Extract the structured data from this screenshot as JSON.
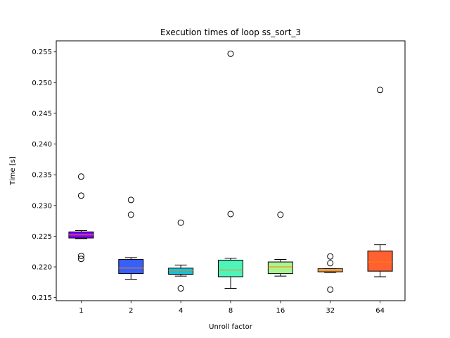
{
  "chart_data": {
    "type": "box",
    "title": "Execution times of loop ss_sort_3",
    "xlabel": "Unroll factor",
    "ylabel": "Time [s]",
    "ylim": [
      0.2145,
      0.2568
    ],
    "yticks": [
      "0.215",
      "0.220",
      "0.225",
      "0.230",
      "0.235",
      "0.240",
      "0.245",
      "0.250",
      "0.255"
    ],
    "grid": false,
    "categories": [
      "1",
      "2",
      "4",
      "8",
      "16",
      "32",
      "64"
    ],
    "boxes": [
      {
        "category": "1",
        "whislo": 0.2246,
        "q1": 0.2247,
        "med": 0.2252,
        "q3": 0.2257,
        "whishi": 0.2259,
        "fliers": [
          0.2347,
          0.2316,
          0.2218,
          0.2213
        ],
        "color": "#8000ff"
      },
      {
        "category": "2",
        "whislo": 0.218,
        "q1": 0.2189,
        "med": 0.2198,
        "q3": 0.2212,
        "whishi": 0.2215,
        "fliers": [
          0.2309,
          0.2285
        ],
        "color": "#3660f9"
      },
      {
        "category": "4",
        "whislo": 0.2185,
        "q1": 0.2188,
        "med": 0.2194,
        "q3": 0.2198,
        "whishi": 0.2203,
        "fliers": [
          0.2272,
          0.2165
        ],
        "color": "#14c0db"
      },
      {
        "category": "8",
        "whislo": 0.2165,
        "q1": 0.2184,
        "med": 0.2195,
        "q3": 0.2211,
        "whishi": 0.2214,
        "fliers": [
          0.2547,
          0.2286
        ],
        "color": "#4ef4b9"
      },
      {
        "category": "16",
        "whislo": 0.2185,
        "q1": 0.2189,
        "med": 0.22,
        "q3": 0.2208,
        "whishi": 0.2212,
        "fliers": [
          0.2285
        ],
        "color": "#acf48f"
      },
      {
        "category": "32",
        "whislo": 0.2191,
        "q1": 0.2192,
        "med": 0.2194,
        "q3": 0.2197,
        "whishi": 0.2197,
        "fliers": [
          0.2217,
          0.2206,
          0.2163
        ],
        "color": "#ffb360"
      },
      {
        "category": "64",
        "whislo": 0.2184,
        "q1": 0.2193,
        "med": 0.2208,
        "q3": 0.2226,
        "whishi": 0.2236,
        "fliers": [
          0.2488
        ],
        "color": "#ff6130"
      }
    ]
  }
}
